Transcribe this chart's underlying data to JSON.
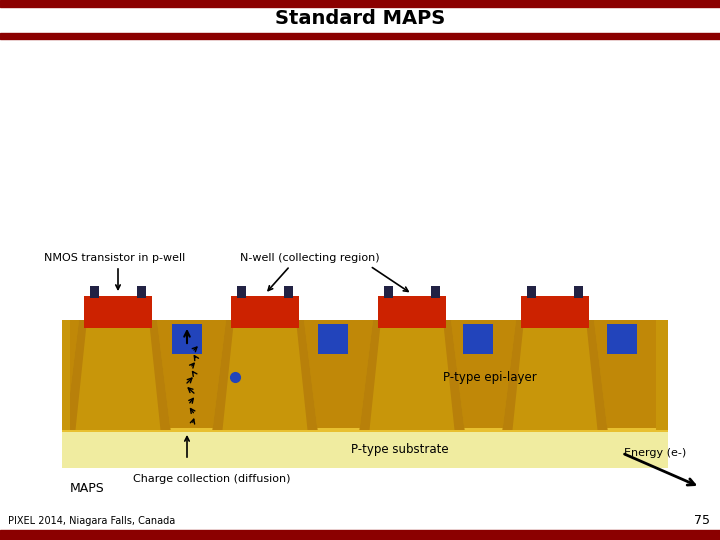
{
  "title": "Standard MAPS",
  "title_fontsize": 14,
  "header_bar_color": "#8B0000",
  "background_color": "#FFFFFF",
  "colors": {
    "red_block": "#CC2200",
    "gold_body": "#C8960A",
    "gold_light": "#E8C030",
    "gold_side": "#B8800A",
    "blue_block": "#2244BB",
    "dark_gray": "#222244",
    "substrate": "#F0ECA0",
    "epi_layer": "#C08808",
    "epi_light": "#D4A010"
  },
  "labels": {
    "nmos": "NMOS transistor in p-well",
    "nwell": "N-well (collecting region)",
    "epi": "P-type epi-layer",
    "substrate": "P-type substrate",
    "energy": "Energy (e-)",
    "charge": "Charge collection (diffusion)",
    "maps": "MAPS",
    "footer": "PIXEL 2014, Niagara Falls, Canada",
    "page": "75"
  }
}
